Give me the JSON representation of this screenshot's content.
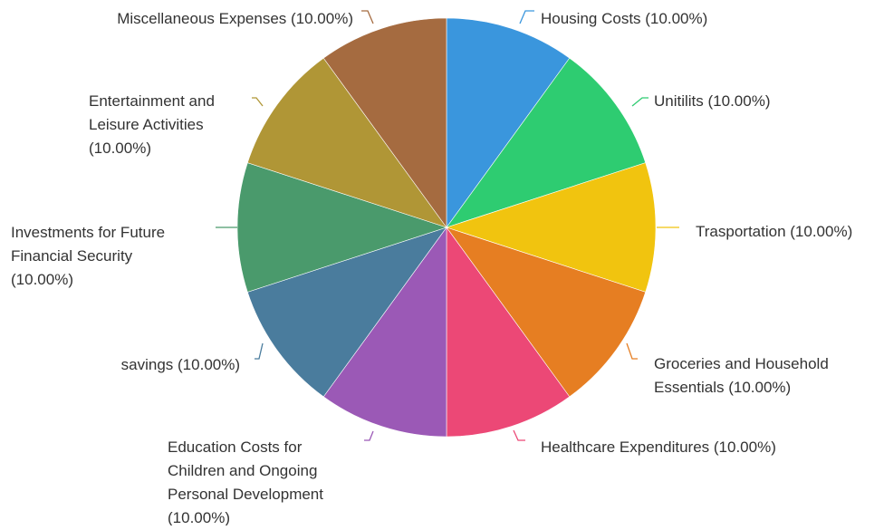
{
  "chart_data": {
    "type": "pie",
    "title": "",
    "start_angle_deg": 0,
    "direction": "clockwise",
    "slices": [
      {
        "name": "Housing Costs",
        "value": 10,
        "percent_label": "(10.00%)",
        "color": "#3a96dd",
        "label_lines": [
          "Housing Costs (10.00%)"
        ]
      },
      {
        "name": "Unitilits",
        "value": 10,
        "percent_label": "(10.00%)",
        "color": "#2ecc71",
        "label_lines": [
          "Unitilits (10.00%)"
        ]
      },
      {
        "name": "Trasportation",
        "value": 10,
        "percent_label": "(10.00%)",
        "color": "#f1c40f",
        "label_lines": [
          "Trasportation (10.00%)"
        ]
      },
      {
        "name": "Groceries and Household Essentials",
        "value": 10,
        "percent_label": "(10.00%)",
        "color": "#e67e22",
        "label_lines": [
          "Groceries and Household",
          "Essentials (10.00%)"
        ]
      },
      {
        "name": "Healthcare Expenditures",
        "value": 10,
        "percent_label": "(10.00%)",
        "color": "#ec4876",
        "label_lines": [
          "Healthcare Expenditures (10.00%)"
        ]
      },
      {
        "name": "Education Costs for Children and Ongoing Personal Development",
        "value": 10,
        "percent_label": "(10.00%)",
        "color": "#9b59b6",
        "label_lines": [
          "Education Costs for",
          "Children and Ongoing",
          "Personal Development",
          "(10.00%)"
        ]
      },
      {
        "name": "savings",
        "value": 10,
        "percent_label": "(10.00%)",
        "color": "#4a7c9d",
        "label_lines": [
          "savings (10.00%)"
        ]
      },
      {
        "name": "Investments for Future Financial Security",
        "value": 10,
        "percent_label": "(10.00%)",
        "color": "#4a9a6c",
        "label_lines": [
          "Investments for Future",
          "Financial Security",
          "(10.00%)"
        ]
      },
      {
        "name": "Entertainment and Leisure Activities",
        "value": 10,
        "percent_label": "(10.00%)",
        "color": "#b09636",
        "label_lines": [
          "Entertainment and",
          "Leisure Activities",
          "(10.00%)"
        ]
      },
      {
        "name": "Miscellaneous Expenses",
        "value": 10,
        "percent_label": "(10.00%)",
        "color": "#a56b40",
        "label_lines": [
          "Miscellaneous Expenses (10.00%)"
        ]
      }
    ]
  }
}
